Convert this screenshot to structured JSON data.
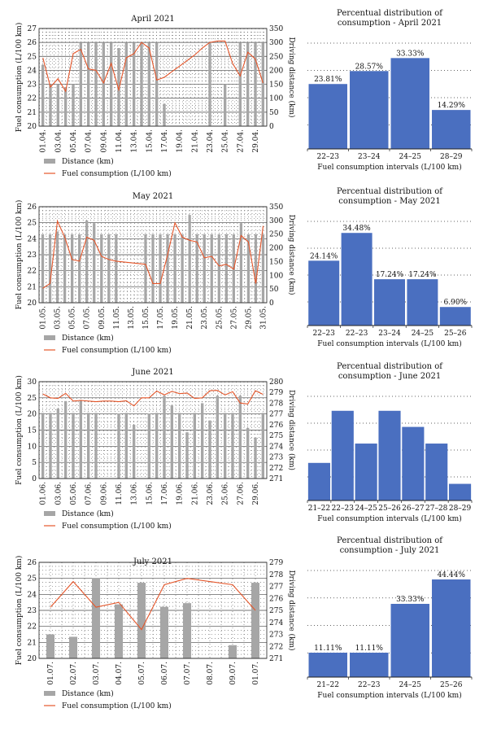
{
  "chart_data": [
    {
      "type": "bar+line",
      "title": "April 2021",
      "xlabel": "",
      "ylabel": "Fuel consumption (L/100 km)",
      "y2label": "Driving distance (km)",
      "ylim": [
        20,
        27
      ],
      "yticks": [
        20,
        21,
        22,
        23,
        24,
        25,
        26,
        27
      ],
      "y2lim": [
        0,
        350
      ],
      "y2ticks": [
        0,
        50,
        100,
        150,
        200,
        250,
        300,
        350
      ],
      "xticks": [
        "01.04.",
        "03.04.",
        "05.04.",
        "07.04.",
        "09.04.",
        "11.04.",
        "13.04.",
        "15.04.",
        "17.04.",
        "19.04.",
        "21.04.",
        "23.04.",
        "25.04.",
        "27.04.",
        "29.04."
      ],
      "legend": [
        "Distance (km)",
        "Fuel consumption (L/100 km)"
      ],
      "series": [
        {
          "name": "Distance (km)",
          "axis": "right",
          "x": [
            1,
            2,
            3,
            4,
            5,
            6,
            7,
            8,
            9,
            10,
            11,
            12,
            13,
            14,
            15,
            16,
            17,
            23,
            25,
            27,
            28,
            29,
            30
          ],
          "values": [
            220,
            150,
            150,
            140,
            150,
            300,
            300,
            300,
            300,
            300,
            280,
            300,
            300,
            300,
            300,
            300,
            80,
            300,
            150,
            300,
            300,
            300,
            300
          ]
        },
        {
          "name": "Fuel consumption (L/100 km)",
          "axis": "left",
          "x": [
            1,
            2,
            3,
            4,
            5,
            6,
            7,
            8,
            9,
            10,
            11,
            12,
            13,
            14,
            15,
            16,
            17,
            18,
            19,
            20,
            21,
            22,
            23,
            24,
            25,
            26,
            27,
            28,
            29,
            30
          ],
          "values": [
            24.9,
            22.8,
            23.4,
            22.5,
            25.2,
            25.5,
            24.1,
            24.0,
            23.1,
            24.5,
            22.6,
            24.9,
            25.2,
            26.0,
            25.6,
            23.3,
            23.5,
            23.9,
            24.3,
            24.7,
            25.1,
            25.6,
            26.0,
            26.1,
            26.1,
            24.5,
            23.6,
            25.3,
            24.8,
            23.1
          ]
        }
      ]
    },
    {
      "type": "bar",
      "title": "Percentual distribution of consumption - April 2021",
      "xlabel": "Fuel consumption intervals (L/100 km)",
      "ylabel": "",
      "categories": [
        "22–23",
        "23–24",
        "24–25",
        "28–29"
      ],
      "values": [
        23.81,
        28.57,
        33.33,
        14.29
      ],
      "labels": [
        "23.81%",
        "28.57%",
        "33.33%",
        "14.29%"
      ],
      "ylim": [
        0,
        40
      ]
    },
    {
      "type": "bar+line",
      "title": "May 2021",
      "xlabel": "",
      "ylabel": "Fuel consumption (L/100 km)",
      "y2label": "Driving distance (km)",
      "ylim": [
        20,
        26
      ],
      "yticks": [
        20,
        21,
        22,
        23,
        24,
        25,
        26
      ],
      "y2lim": [
        0,
        350
      ],
      "y2ticks": [
        0,
        50,
        100,
        150,
        200,
        250,
        300,
        350
      ],
      "xticks": [
        "01.05.",
        "03.05.",
        "05.05.",
        "07.05.",
        "09.05.",
        "11.05.",
        "13.05.",
        "15.05.",
        "17.05.",
        "19.05.",
        "21.05.",
        "23.05.",
        "25.05.",
        "27.05.",
        "29.05.",
        "31.05."
      ],
      "legend": [
        "Distance (km)",
        "Fuel consumption (L/100 km)"
      ],
      "series": [
        {
          "name": "Distance (km)",
          "axis": "right",
          "x": [
            1,
            2,
            3,
            4,
            5,
            6,
            7,
            8,
            9,
            10,
            11,
            15,
            16,
            17,
            18,
            19,
            20,
            21,
            22,
            23,
            24,
            25,
            26,
            27,
            28,
            29,
            30,
            31
          ],
          "values": [
            250,
            250,
            260,
            250,
            250,
            250,
            300,
            290,
            250,
            250,
            250,
            250,
            250,
            250,
            250,
            250,
            250,
            320,
            250,
            250,
            250,
            250,
            250,
            250,
            290,
            250,
            250,
            250
          ]
        },
        {
          "name": "Fuel consumption (L/100 km)",
          "axis": "left",
          "x": [
            1,
            2,
            3,
            4,
            5,
            6,
            7,
            8,
            9,
            10,
            11,
            15,
            16,
            17,
            18,
            19,
            20,
            21,
            22,
            23,
            24,
            25,
            26,
            27,
            28,
            29,
            30,
            31
          ],
          "values": [
            20.9,
            21.2,
            25.1,
            24.1,
            22.7,
            22.6,
            24.1,
            23.9,
            22.9,
            22.7,
            22.6,
            22.4,
            21.2,
            21.2,
            23.0,
            25.0,
            24.1,
            23.9,
            23.8,
            22.8,
            22.9,
            22.3,
            22.4,
            22.1,
            24.2,
            23.8,
            21.2,
            24.8
          ]
        }
      ]
    },
    {
      "type": "bar",
      "title": "Percentual distribution of consumption - May 2021",
      "xlabel": "Fuel consumption intervals (L/100 km)",
      "ylabel": "",
      "categories": [
        "22–23",
        "22–23",
        "23–24",
        "24–25",
        "25–26"
      ],
      "values": [
        24.14,
        34.48,
        17.24,
        17.24,
        6.9
      ],
      "labels": [
        "24.14%",
        "34.48%",
        "17.24%",
        "17.24%",
        "6.90%"
      ],
      "ylim": [
        0,
        40
      ]
    },
    {
      "type": "bar+line",
      "title": "June 2021",
      "xlabel": "",
      "ylabel": "Fuel consumption (L/100 km)",
      "y2label": "Driving distance (km)",
      "ylim": [
        0,
        30
      ],
      "yticks": [
        0,
        5,
        10,
        15,
        20,
        25,
        30
      ],
      "y2lim": [
        271,
        280
      ],
      "y2ticks": [
        271,
        272,
        273,
        274,
        275,
        276,
        277,
        278,
        279,
        280
      ],
      "xticks": [
        "01.06.",
        "03.06.",
        "05.06.",
        "07.06.",
        "09.06.",
        "11.06.",
        "13.06.",
        "15.06.",
        "17.06.",
        "19.06.",
        "21.06.",
        "23.06.",
        "25.06.",
        "27.06.",
        "29.06."
      ],
      "legend": [
        "Distance (km)",
        "Fuel consumption (L/100 km)"
      ],
      "series": [
        {
          "name": "Distance (km)",
          "axis": "right",
          "x": [
            1,
            2,
            3,
            4,
            5,
            6,
            7,
            8,
            11,
            12,
            13,
            15,
            16,
            17,
            18,
            19,
            20,
            21,
            22,
            23,
            24,
            25,
            26,
            27,
            28,
            29,
            30
          ],
          "values": [
            277.1,
            277.1,
            277.5,
            278.2,
            277.1,
            278.3,
            277.1,
            277.1,
            277.0,
            277.1,
            276.0,
            277.0,
            277.1,
            278.7,
            277.8,
            277.1,
            275.3,
            277.1,
            278.0,
            276.4,
            278.7,
            277.1,
            277.1,
            278.7,
            275.7,
            274.8,
            277.1
          ]
        },
        {
          "name": "Fuel consumption (L/100 km)",
          "axis": "left",
          "x": [
            1,
            2,
            3,
            4,
            5,
            6,
            7,
            8,
            9,
            10,
            11,
            12,
            13,
            14,
            15,
            16,
            17,
            18,
            19,
            20,
            21,
            22,
            23,
            24,
            25,
            26,
            27,
            28,
            29,
            30
          ],
          "values": [
            26.2,
            25.0,
            24.8,
            26.4,
            24.0,
            24.2,
            24.0,
            23.8,
            24.0,
            24.0,
            23.8,
            24.1,
            22.5,
            25.0,
            25.0,
            27.1,
            25.9,
            27.0,
            26.3,
            26.5,
            24.8,
            25.0,
            27.2,
            27.3,
            25.9,
            26.9,
            23.4,
            23.1,
            27.2,
            26.1
          ]
        }
      ]
    },
    {
      "type": "bar",
      "title": "Percentual distribution of consumption - June 2021",
      "xlabel": "Fuel consumption intervals (L/100 km)",
      "ylabel": "",
      "categories": [
        "21–22",
        "22–23",
        "24–25",
        "25–26",
        "26–27",
        "27–28",
        "28–29"
      ],
      "values": [
        7,
        16.7,
        10.6,
        16.7,
        13.7,
        10.6,
        3.1
      ],
      "labels": [],
      "ylim": [
        0,
        20
      ]
    },
    {
      "type": "bar+line",
      "title": "July 2021",
      "xlabel": "",
      "ylabel": "Fuel consumption (L/100 km)",
      "y2label": "Driving distance (km)",
      "ylim": [
        20,
        26
      ],
      "yticks": [
        20,
        21,
        22,
        23,
        24,
        25,
        26
      ],
      "y2lim": [
        271,
        279
      ],
      "y2ticks": [
        271,
        272,
        273,
        274,
        275,
        276,
        277,
        278,
        279
      ],
      "xticks": [
        "01.07.",
        "02.07.",
        "03.07.",
        "04.07.",
        "05.07.",
        "06.07.",
        "07.07.",
        "08.07.",
        "09.07.",
        "01.07."
      ],
      "legend": [
        "Distance (km)",
        "Fuel consumption (L/100 km)"
      ],
      "series": [
        {
          "name": "Distance (km)",
          "axis": "right",
          "x": [
            1,
            2,
            3,
            4,
            5,
            6,
            7,
            9,
            10
          ],
          "values": [
            273.0,
            272.8,
            277.7,
            275.5,
            277.3,
            275.3,
            275.6,
            272.1,
            277.3
          ]
        },
        {
          "name": "Fuel consumption (L/100 km)",
          "axis": "left",
          "x": [
            1,
            2,
            3,
            4,
            5,
            6,
            7,
            8,
            9,
            10
          ],
          "values": [
            23.2,
            24.8,
            23.2,
            23.5,
            21.8,
            24.6,
            25.0,
            24.8,
            24.6,
            23.0
          ]
        }
      ]
    },
    {
      "type": "bar",
      "title": "Percentual distribution of consumption - July 2021",
      "xlabel": "Fuel consumption intervals (L/100 km)",
      "ylabel": "",
      "categories": [
        "21–22",
        "22–23",
        "24–25",
        "25–26"
      ],
      "values": [
        11.11,
        11.11,
        33.33,
        44.44
      ],
      "labels": [
        "11.11%",
        "11.11%",
        "33.33%",
        "44.44%"
      ],
      "ylim": [
        0,
        50
      ]
    }
  ],
  "colors": {
    "distance_bar": "#a6a6a6",
    "fuel_line": "#e5562a",
    "histogram_bar": "#4a6fc0",
    "axis": "#222222",
    "grid": "#555555"
  }
}
